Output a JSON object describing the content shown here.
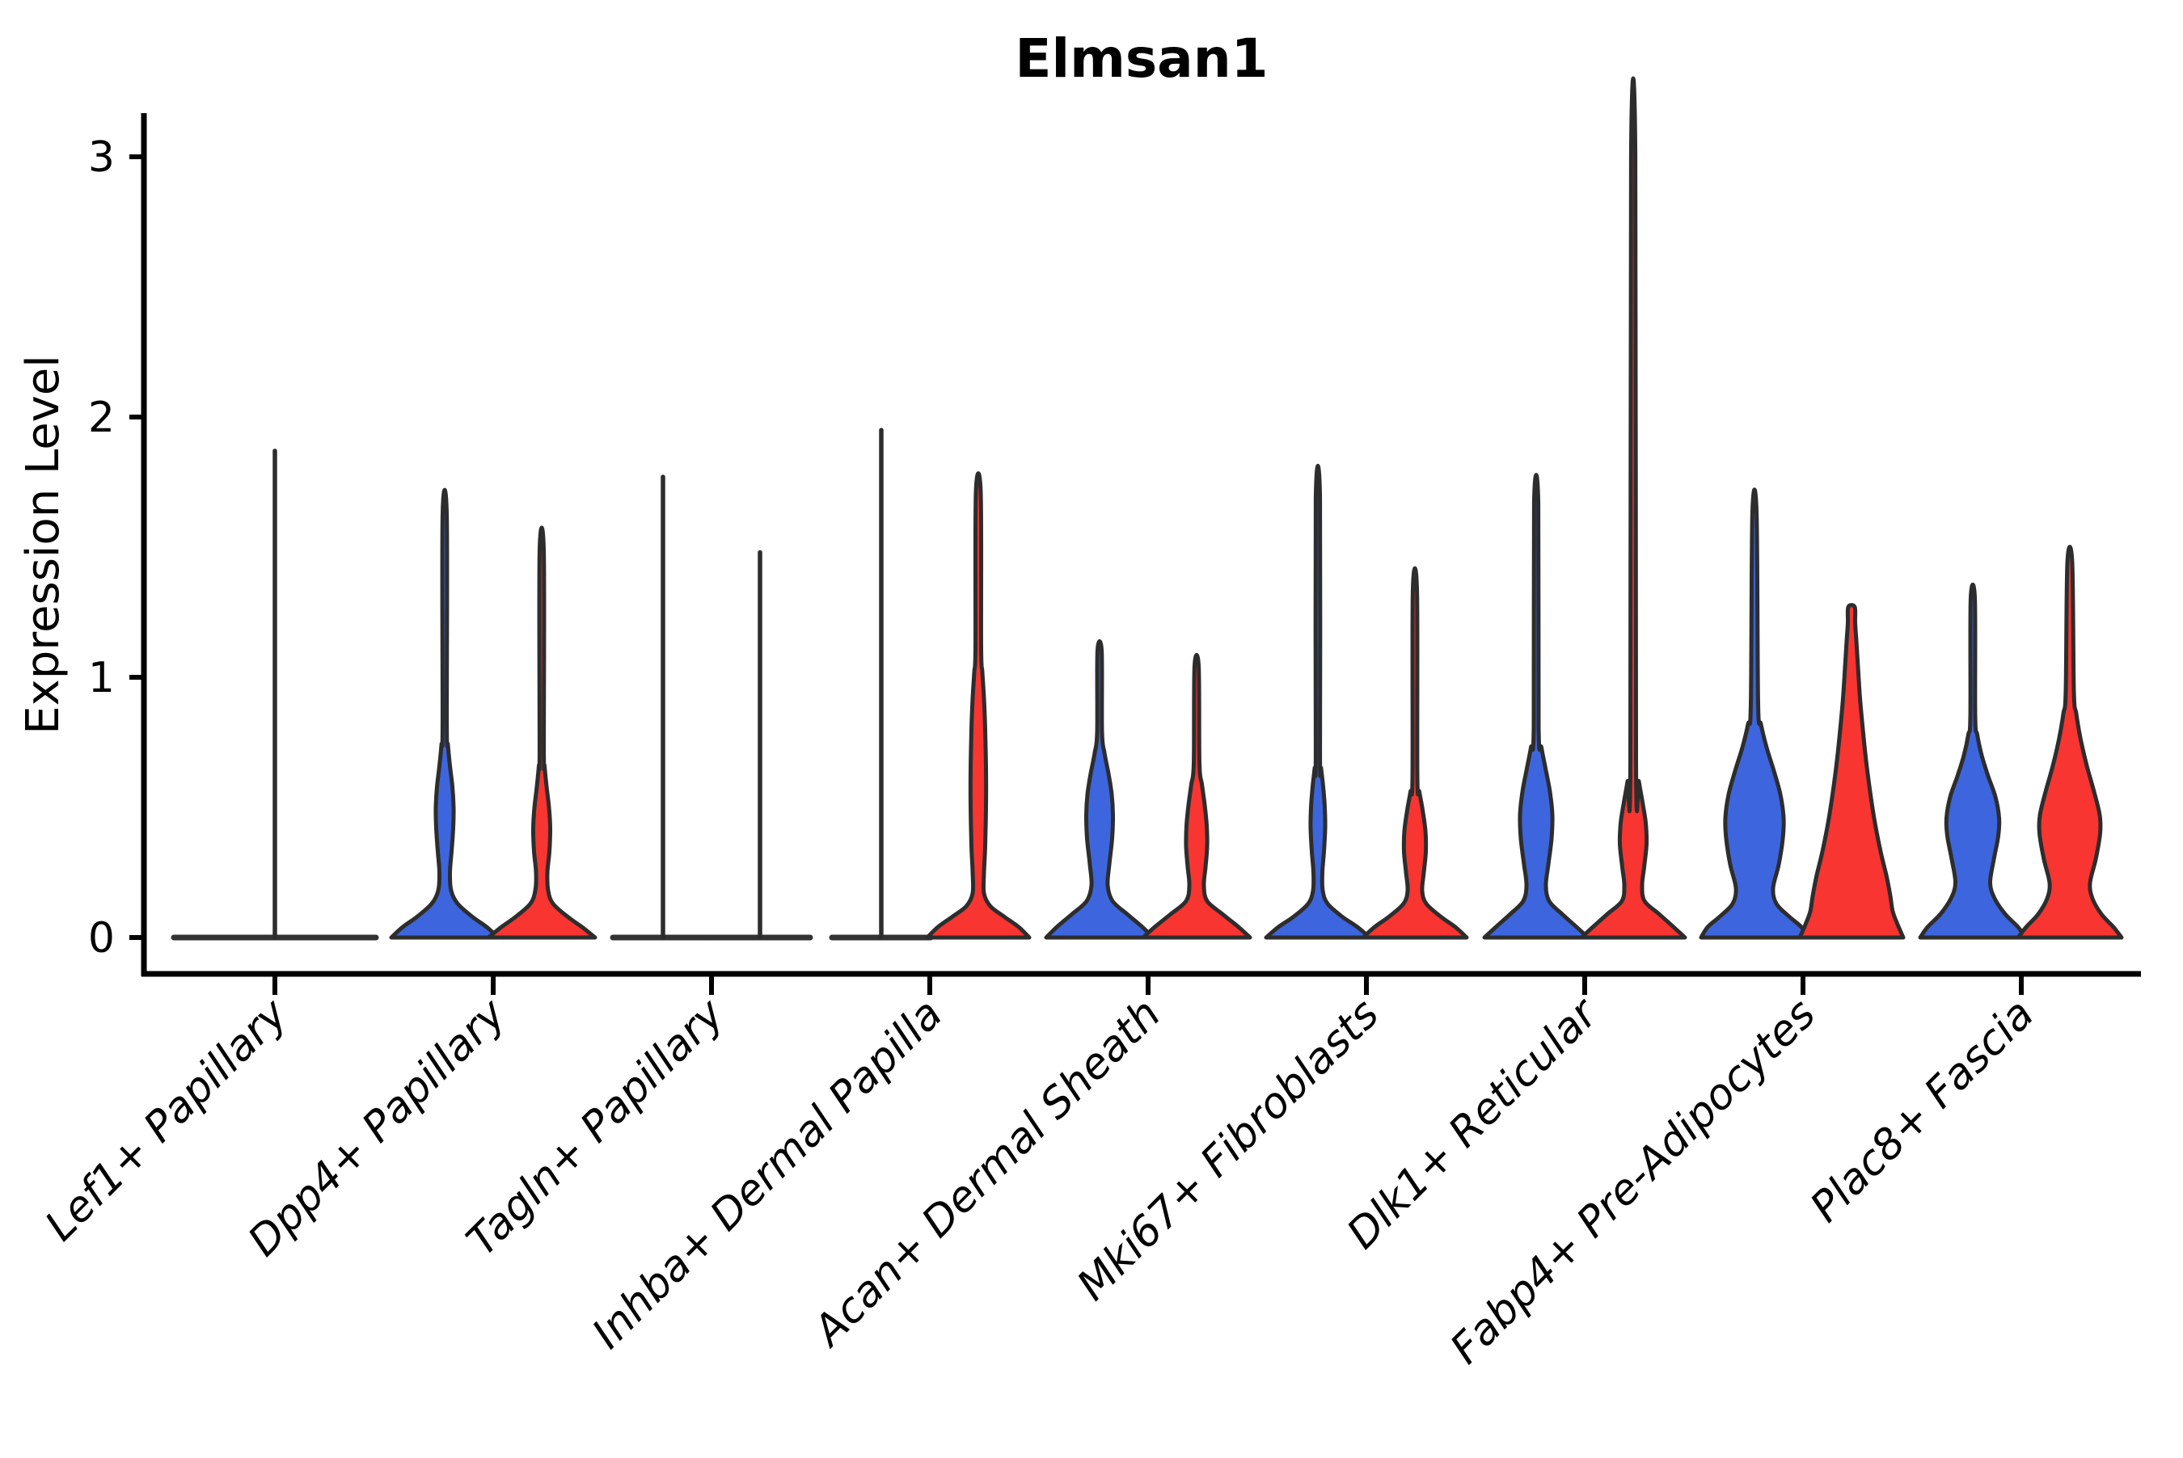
{
  "chart": {
    "title": "Elmsan1",
    "ylabel": "Expression Level",
    "background": "#ffffff"
  },
  "chart_data": {
    "type": "violin",
    "title": "Elmsan1",
    "xlabel": "",
    "ylabel": "Expression Level",
    "ylim": [
      -0.15,
      3.2
    ],
    "yticks": [
      0,
      1,
      2,
      3
    ],
    "grid": false,
    "legend": "none",
    "split_violin_columns": [
      "blue",
      "red"
    ],
    "colors": {
      "blue": "#3D66DE",
      "red": "#F93531",
      "outline": "#2D2D2D",
      "axis": "#000000",
      "flat_line": "#333333"
    },
    "categories": [
      {
        "label": "Lef1+ Papillary",
        "violins": [
          {
            "side": "full",
            "color": "none",
            "flat": true,
            "max": 1.87,
            "half_width": 125
          }
        ]
      },
      {
        "label": "Dpp4+ Papillary",
        "violins": [
          {
            "side": "left",
            "color": "blue",
            "flat": false,
            "max": 1.62,
            "spike_hw": 2.6,
            "profile": [
              [
                0,
                66
              ],
              [
                0.04,
                52
              ],
              [
                0.08,
                34
              ],
              [
                0.13,
                16
              ],
              [
                0.18,
                8
              ],
              [
                0.25,
                6.5
              ],
              [
                0.33,
                8.5
              ],
              [
                0.42,
                10.5
              ],
              [
                0.5,
                11
              ],
              [
                0.58,
                9.5
              ],
              [
                0.66,
                6.5
              ],
              [
                0.74,
                4
              ],
              [
                0.82,
                2.6
              ]
            ]
          },
          {
            "side": "right",
            "color": "red",
            "flat": false,
            "max": 1.48,
            "spike_hw": 2.6,
            "profile": [
              [
                0,
                66
              ],
              [
                0.04,
                50
              ],
              [
                0.08,
                32
              ],
              [
                0.13,
                14
              ],
              [
                0.18,
                8
              ],
              [
                0.25,
                7
              ],
              [
                0.33,
                9.5
              ],
              [
                0.42,
                10.5
              ],
              [
                0.5,
                9
              ],
              [
                0.58,
                6
              ],
              [
                0.66,
                3.5
              ],
              [
                0.72,
                2.6
              ]
            ]
          }
        ]
      },
      {
        "label": "Tagln+ Papillary",
        "violins": [
          {
            "side": "left",
            "color": "none",
            "flat": true,
            "max": 1.77,
            "half_width": 62
          },
          {
            "side": "right",
            "color": "none",
            "flat": true,
            "max": 1.48,
            "half_width": 62
          }
        ]
      },
      {
        "label": "Inhba+ Dermal Papilla",
        "violins": [
          {
            "side": "left",
            "color": "none",
            "flat": true,
            "max": 1.95,
            "half_width": 61
          },
          {
            "side": "right",
            "color": "red",
            "flat": false,
            "max": 1.71,
            "spike_hw": 3,
            "profile": [
              [
                0,
                63
              ],
              [
                0.04,
                50
              ],
              [
                0.08,
                32
              ],
              [
                0.12,
                15
              ],
              [
                0.17,
                7
              ],
              [
                0.25,
                7
              ],
              [
                0.35,
                8.5
              ],
              [
                0.5,
                9.5
              ],
              [
                0.65,
                9.5
              ],
              [
                0.8,
                8.5
              ],
              [
                0.92,
                7
              ],
              [
                1.02,
                5
              ],
              [
                1.12,
                3.5
              ]
            ]
          }
        ]
      },
      {
        "label": "Acan+ Dermal Sheath",
        "violins": [
          {
            "side": "left",
            "color": "blue",
            "flat": false,
            "max": 1.1,
            "spike_hw": 2.6,
            "profile": [
              [
                0,
                66
              ],
              [
                0.04,
                53
              ],
              [
                0.09,
                34
              ],
              [
                0.14,
                16
              ],
              [
                0.2,
                10
              ],
              [
                0.28,
                12
              ],
              [
                0.38,
                15.5
              ],
              [
                0.47,
                16.5
              ],
              [
                0.55,
                15
              ],
              [
                0.63,
                11
              ],
              [
                0.71,
                6
              ],
              [
                0.79,
                3
              ]
            ]
          },
          {
            "side": "right",
            "color": "red",
            "flat": false,
            "max": 1.04,
            "spike_hw": 2.6,
            "profile": [
              [
                0,
                66
              ],
              [
                0.04,
                52
              ],
              [
                0.09,
                32
              ],
              [
                0.14,
                13
              ],
              [
                0.2,
                9
              ],
              [
                0.27,
                11
              ],
              [
                0.35,
                13
              ],
              [
                0.43,
                12.5
              ],
              [
                0.51,
                10
              ],
              [
                0.59,
                6.5
              ],
              [
                0.67,
                3.5
              ]
            ]
          }
        ]
      },
      {
        "label": "Mki67+ Fibroblasts",
        "violins": [
          {
            "side": "left",
            "color": "blue",
            "flat": false,
            "max": 1.69,
            "spike_hw": 2.6,
            "profile": [
              [
                0,
                64
              ],
              [
                0.04,
                49
              ],
              [
                0.08,
                30
              ],
              [
                0.13,
                12
              ],
              [
                0.18,
                6
              ],
              [
                0.25,
                5.5
              ],
              [
                0.33,
                7.5
              ],
              [
                0.42,
                9
              ],
              [
                0.5,
                8.5
              ],
              [
                0.58,
                6.5
              ],
              [
                0.65,
                4
              ],
              [
                0.71,
                2.6
              ]
            ]
          },
          {
            "side": "right",
            "color": "red",
            "flat": false,
            "max": 1.33,
            "spike_hw": 2.6,
            "profile": [
              [
                0,
                64
              ],
              [
                0.04,
                50
              ],
              [
                0.08,
                32
              ],
              [
                0.13,
                14
              ],
              [
                0.18,
                9
              ],
              [
                0.25,
                11
              ],
              [
                0.33,
                13.5
              ],
              [
                0.41,
                13
              ],
              [
                0.49,
                9.5
              ],
              [
                0.56,
                5.5
              ],
              [
                0.62,
                3
              ]
            ]
          }
        ]
      },
      {
        "label": "Dlk1+ Reticular",
        "violins": [
          {
            "side": "left",
            "color": "blue",
            "flat": false,
            "max": 1.67,
            "spike_hw": 2.6,
            "profile": [
              [
                0,
                64
              ],
              [
                0.04,
                50
              ],
              [
                0.09,
                32
              ],
              [
                0.14,
                16
              ],
              [
                0.2,
                12
              ],
              [
                0.28,
                15
              ],
              [
                0.38,
                19
              ],
              [
                0.47,
                20
              ],
              [
                0.56,
                17
              ],
              [
                0.65,
                11.5
              ],
              [
                0.73,
                6.5
              ],
              [
                0.81,
                3
              ]
            ]
          },
          {
            "side": "right",
            "color": "red",
            "flat": false,
            "max": 3.01,
            "spike_hw": 2.6,
            "profile": [
              [
                0,
                64
              ],
              [
                0.04,
                50
              ],
              [
                0.09,
                32
              ],
              [
                0.14,
                14
              ],
              [
                0.2,
                11
              ],
              [
                0.27,
                13.5
              ],
              [
                0.36,
                16.5
              ],
              [
                0.44,
                15.5
              ],
              [
                0.52,
                11.5
              ],
              [
                0.6,
                7
              ],
              [
                0.68,
                3.5
              ]
            ]
          }
        ]
      },
      {
        "label": "Fabp4+ Pre-Adipocytes",
        "violins": [
          {
            "side": "left",
            "color": "blue",
            "flat": false,
            "max": 1.63,
            "spike_hw": 2.6,
            "profile": [
              [
                0,
                66
              ],
              [
                0.04,
                58
              ],
              [
                0.08,
                43
              ],
              [
                0.13,
                27
              ],
              [
                0.19,
                23
              ],
              [
                0.28,
                30
              ],
              [
                0.38,
                35
              ],
              [
                0.46,
                36
              ],
              [
                0.55,
                32
              ],
              [
                0.64,
                24
              ],
              [
                0.73,
                15
              ],
              [
                0.82,
                8
              ],
              [
                0.9,
                4.5
              ]
            ]
          },
          {
            "side": "right",
            "color": "red",
            "flat": false,
            "max": 1.27,
            "spike_hw": 4,
            "profile": [
              [
                0,
                64
              ],
              [
                0.05,
                57
              ],
              [
                0.1,
                51
              ],
              [
                0.16,
                48
              ],
              [
                0.24,
                43
              ],
              [
                0.33,
                36
              ],
              [
                0.44,
                29
              ],
              [
                0.56,
                23
              ],
              [
                0.68,
                18
              ],
              [
                0.8,
                14
              ],
              [
                0.92,
                10.5
              ],
              [
                1.04,
                8
              ],
              [
                1.14,
                6
              ],
              [
                1.21,
                4.5
              ]
            ]
          }
        ]
      },
      {
        "label": "Plac8+ Fascia",
        "violins": [
          {
            "side": "left",
            "color": "blue",
            "flat": false,
            "max": 1.3,
            "spike_hw": 2.6,
            "profile": [
              [
                0,
                65
              ],
              [
                0.04,
                56
              ],
              [
                0.09,
                40
              ],
              [
                0.15,
                27
              ],
              [
                0.21,
                21.5
              ],
              [
                0.3,
                26
              ],
              [
                0.39,
                31.5
              ],
              [
                0.46,
                32.5
              ],
              [
                0.54,
                28
              ],
              [
                0.62,
                19
              ],
              [
                0.7,
                11
              ],
              [
                0.78,
                5.5
              ],
              [
                0.85,
                3
              ]
            ]
          },
          {
            "side": "right",
            "color": "red",
            "flat": false,
            "max": 1.44,
            "spike_hw": 3,
            "profile": [
              [
                0,
                64
              ],
              [
                0.04,
                54
              ],
              [
                0.09,
                39
              ],
              [
                0.15,
                28
              ],
              [
                0.21,
                25
              ],
              [
                0.3,
                32
              ],
              [
                0.4,
                37.5
              ],
              [
                0.47,
                37
              ],
              [
                0.56,
                30
              ],
              [
                0.66,
                21
              ],
              [
                0.76,
                13.5
              ],
              [
                0.86,
                8
              ],
              [
                0.95,
                5
              ]
            ]
          }
        ]
      }
    ]
  }
}
